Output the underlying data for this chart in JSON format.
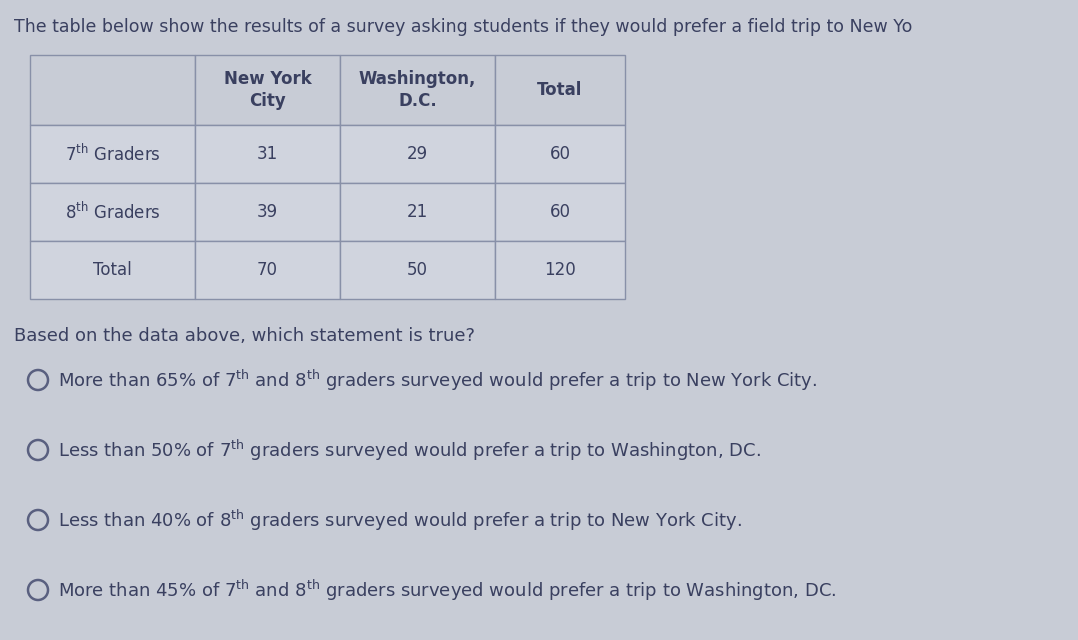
{
  "title": "The table below show the results of a survey asking students if they would prefer a field trip to New Yo",
  "col_headers": [
    "",
    "New York\nCity",
    "Washington,\nD.C.",
    "Total"
  ],
  "row_labels": [
    "7$^{th}$ Graders",
    "8$^{th}$ Graders",
    "Total"
  ],
  "row_data": [
    [
      31,
      29,
      60
    ],
    [
      39,
      21,
      60
    ],
    [
      70,
      50,
      120
    ]
  ],
  "question": "Based on the data above, which statement is true?",
  "options": [
    [
      "More than 65% of 7",
      "th",
      " and 8",
      "th",
      " graders surveyed would prefer a trip to New York City."
    ],
    [
      "Less than 50% of 7",
      "th",
      " graders surveyed would prefer a trip to Washington, DC.",
      "",
      ""
    ],
    [
      "Less than 40% of 8",
      "th",
      " graders surveyed would prefer a trip to New York City.",
      "",
      ""
    ],
    [
      "More than 45% of 7",
      "th",
      " and 8",
      "th",
      " graders surveyed would prefer a trip to Washington, DC."
    ]
  ],
  "bg_color": "#c8ccd6",
  "table_cell_color": "#d0d4de",
  "table_header_color": "#c8ccd6",
  "table_border_color": "#8890a8",
  "text_color": "#3a4060",
  "title_color": "#3a4060"
}
